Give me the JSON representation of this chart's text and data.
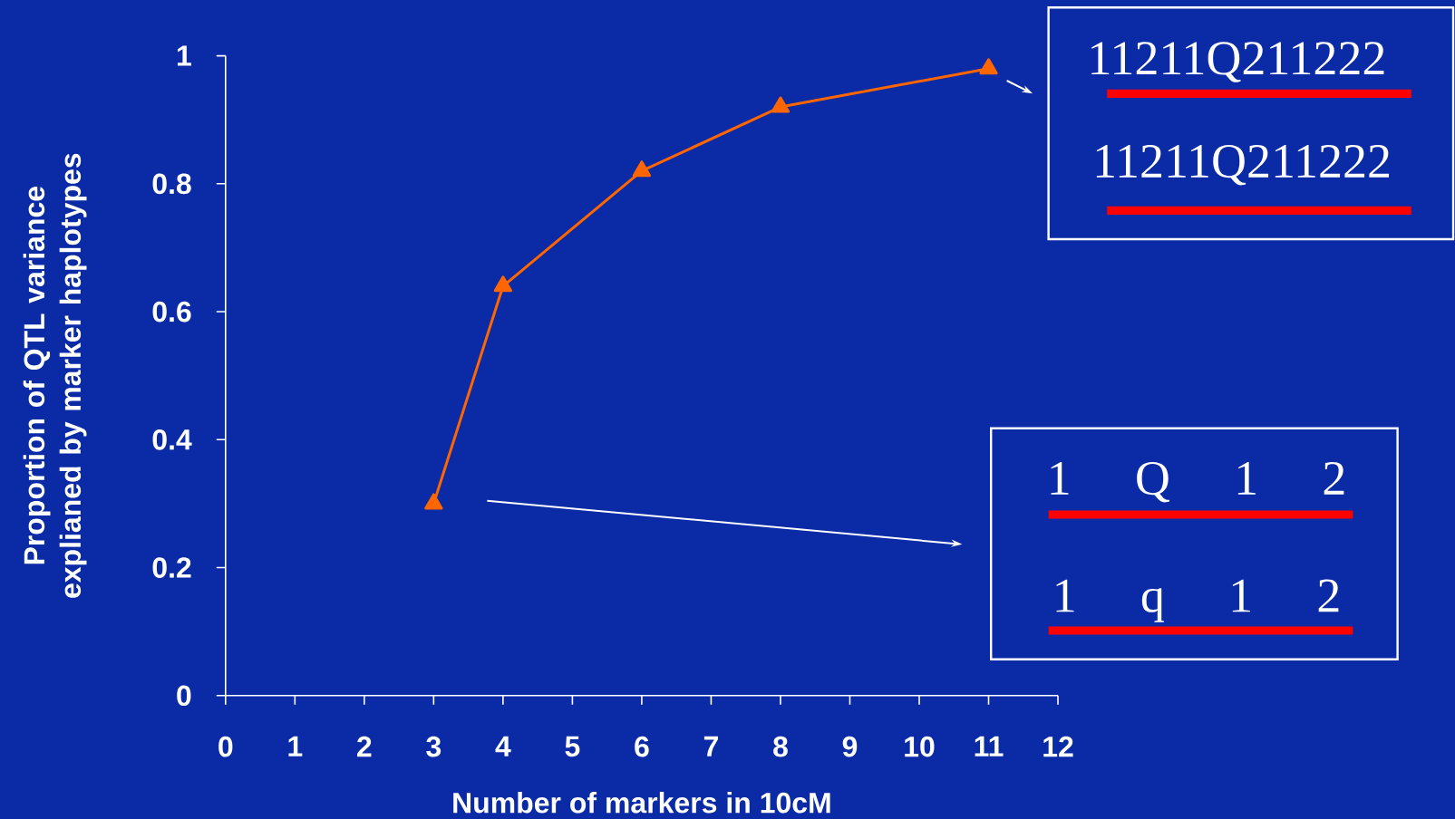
{
  "chart_data": {
    "type": "line",
    "xlabel": "Number of markers in 10cM",
    "ylabel": "Proportion of QTL variance explianed by marker haplotypes",
    "x": [
      3,
      4,
      6,
      8,
      11
    ],
    "series": [
      {
        "color": "#ff6600",
        "values": [
          0.3,
          0.64,
          0.82,
          0.92,
          0.98
        ]
      }
    ],
    "marker": "triangle",
    "line_style": "solid",
    "grid": false,
    "xlim": [
      0,
      12
    ],
    "ylim": [
      0,
      1
    ],
    "xticks": [
      0,
      1,
      2,
      3,
      4,
      5,
      6,
      7,
      8,
      9,
      10,
      11,
      12
    ],
    "yticks": [
      0,
      0.2,
      0.4,
      0.6,
      0.8,
      1
    ],
    "annotations": [
      "11211Q211222",
      "11211Q211222",
      "1 Q 1 2",
      "1 q 1 2"
    ]
  }
}
